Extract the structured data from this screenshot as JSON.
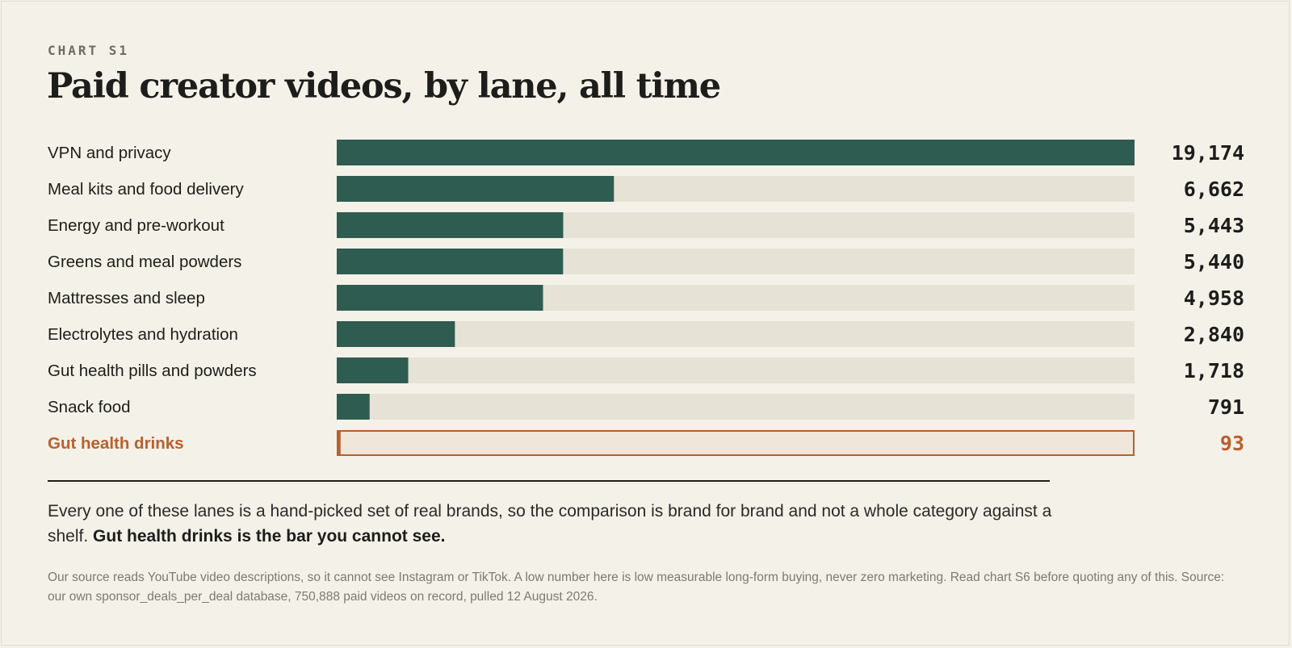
{
  "kicker": "CHART S1",
  "title": "Paid creator videos, by lane, all time",
  "colors": {
    "bar": "#2f5c50",
    "track": "#e6e2d6",
    "highlight": "#b8602e",
    "highlight_track": "#f1e6da",
    "text": "#1d1d1b"
  },
  "chart_data": {
    "type": "bar",
    "orientation": "horizontal",
    "categories": [
      "VPN and privacy",
      "Meal kits and food delivery",
      "Energy and pre-workout",
      "Greens and meal powders",
      "Mattresses and sleep",
      "Electrolytes and hydration",
      "Gut health pills and powders",
      "Snack food",
      "Gut health drinks"
    ],
    "values": [
      19174,
      6662,
      5443,
      5440,
      4958,
      2840,
      1718,
      791,
      93
    ],
    "value_labels": [
      "19,174",
      "6,662",
      "5,443",
      "5,440",
      "4,958",
      "2,840",
      "1,718",
      "791",
      "93"
    ],
    "highlighted_category": "Gut health drinks",
    "xlim": [
      0,
      19174
    ],
    "grid": false,
    "legend": "none"
  },
  "note": {
    "text": "Every one of these lanes is a hand-picked set of real brands, so the comparison is brand for brand and not a whole category against a shelf.",
    "emphasis": "Gut health drinks is the bar you cannot see."
  },
  "source_note": "Our source reads YouTube video descriptions, so it cannot see Instagram or TikTok. A low number here is low measurable long-form buying, never zero marketing. Read chart S6 before quoting any of this. Source: our own sponsor_deals_per_deal database, 750,888 paid videos on record, pulled 12 August 2026."
}
